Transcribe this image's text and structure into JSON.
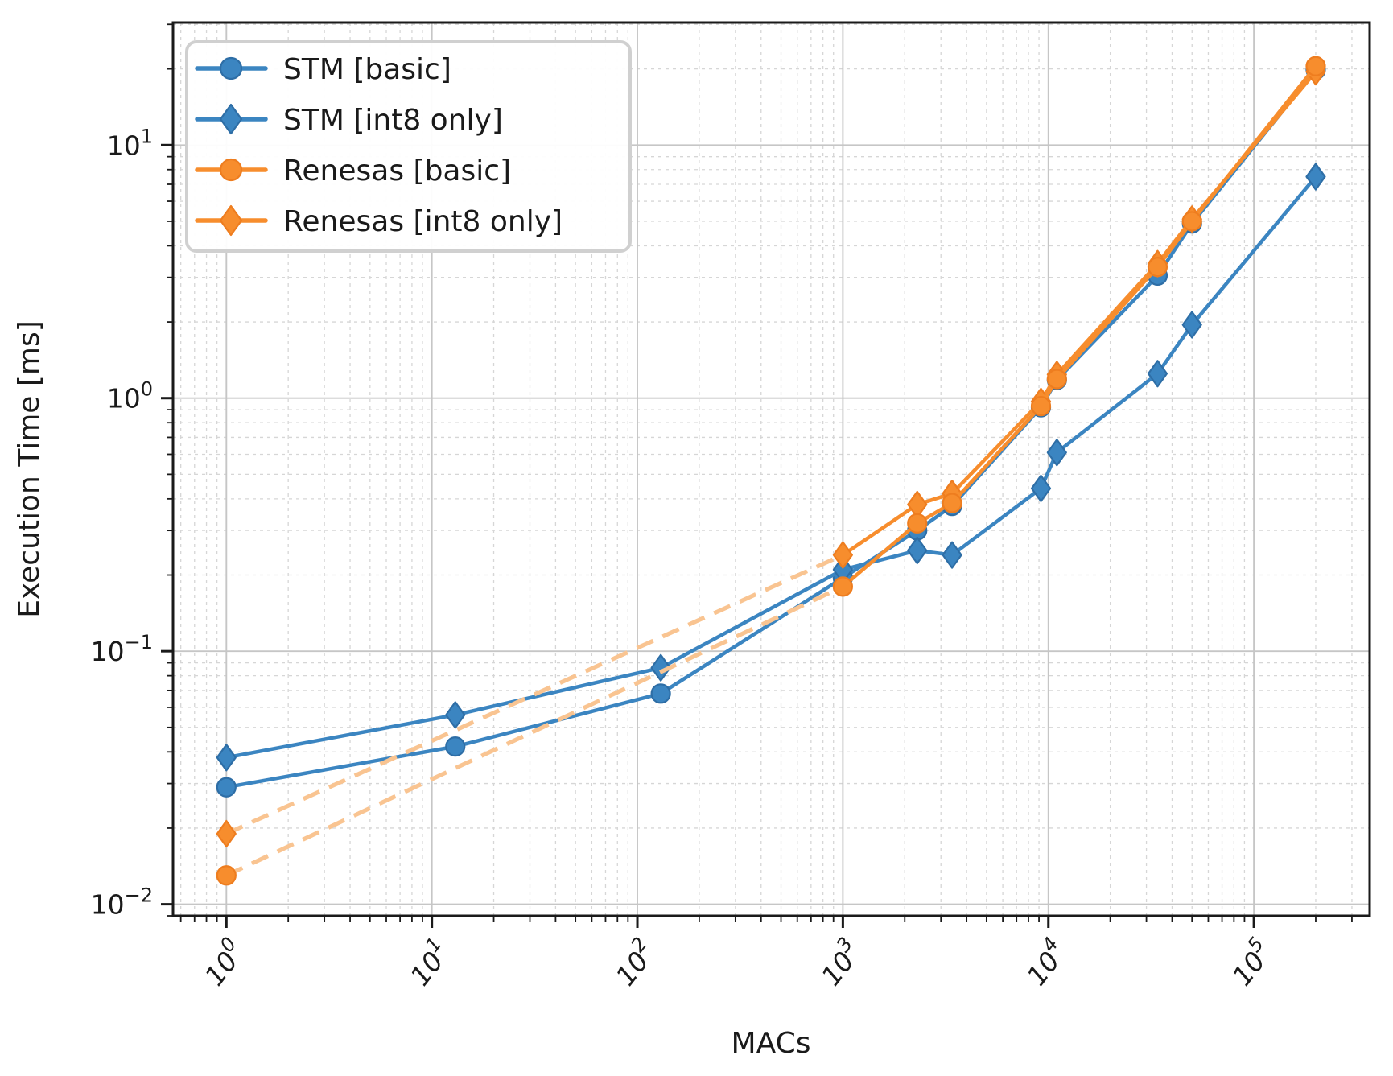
{
  "figure": {
    "background": "#ffffff",
    "spine_color": "#1a1a1a",
    "grid_major_color": "#c6c6c6",
    "grid_minor_color": "#d6d6d6",
    "text_color": "#1a1a1a"
  },
  "chart_data": {
    "type": "line",
    "xscale": "log",
    "yscale": "log",
    "title": "",
    "xlabel": "MACs",
    "ylabel": "Execution Time [ms]",
    "xlim": [
      0.55,
      366000
    ],
    "ylim": [
      0.009,
      30.5
    ],
    "grid": {
      "major": true,
      "minor": true
    },
    "legend_position": "upper left",
    "x_ticks": [
      {
        "value": 1,
        "base": "10",
        "exp": "0"
      },
      {
        "value": 10,
        "base": "10",
        "exp": "1"
      },
      {
        "value": 100,
        "base": "10",
        "exp": "2"
      },
      {
        "value": 1000,
        "base": "10",
        "exp": "3"
      },
      {
        "value": 10000,
        "base": "10",
        "exp": "4"
      },
      {
        "value": 100000,
        "base": "10",
        "exp": "5"
      }
    ],
    "y_ticks": [
      {
        "value": 10,
        "base": "10",
        "exp": "1"
      },
      {
        "value": 1,
        "base": "10",
        "exp": "0"
      },
      {
        "value": 0.1,
        "base": "10",
        "exp": "−1"
      },
      {
        "value": 0.01,
        "base": "10",
        "exp": "−2"
      }
    ],
    "series": [
      {
        "name": "STM [basic]",
        "color": "#3b85c1",
        "edge_color": "#2e6ea6",
        "marker": "circle",
        "linestyle": "solid",
        "dashed_first_segments": 0,
        "z": 1,
        "points": [
          [
            1,
            0.029
          ],
          [
            13,
            0.042
          ],
          [
            130,
            0.068
          ],
          [
            1000,
            0.195
          ],
          [
            2300,
            0.3
          ],
          [
            3400,
            0.375
          ],
          [
            9200,
            0.92
          ],
          [
            11000,
            1.18
          ],
          [
            34000,
            3.05
          ],
          [
            50000,
            4.9
          ],
          [
            200000,
            19.8
          ]
        ]
      },
      {
        "name": "STM [int8 only]",
        "color": "#3b85c1",
        "edge_color": "#2e6ea6",
        "marker": "diamond",
        "linestyle": "solid",
        "dashed_first_segments": 0,
        "z": 2,
        "points": [
          [
            1,
            0.038
          ],
          [
            13,
            0.056
          ],
          [
            130,
            0.086
          ],
          [
            1000,
            0.21
          ],
          [
            2300,
            0.25
          ],
          [
            3400,
            0.24
          ],
          [
            9200,
            0.44
          ],
          [
            11000,
            0.61
          ],
          [
            34000,
            1.25
          ],
          [
            50000,
            1.95
          ],
          [
            200000,
            7.5
          ]
        ]
      },
      {
        "name": "Renesas [basic]",
        "color": "#f78d2d",
        "edge_color": "#ee7d1f",
        "marker": "circle",
        "linestyle": "dashed_then_solid",
        "dashed_first_segments": 1,
        "dash_color": "#f9c491",
        "z": 4,
        "points": [
          [
            1,
            0.013
          ],
          [
            1000,
            0.18
          ],
          [
            2300,
            0.32
          ],
          [
            3400,
            0.385
          ],
          [
            9200,
            0.93
          ],
          [
            11000,
            1.19
          ],
          [
            34000,
            3.3
          ],
          [
            50000,
            5.0
          ],
          [
            200000,
            20.5
          ]
        ]
      },
      {
        "name": "Renesas [int8 only]",
        "color": "#f78d2d",
        "edge_color": "#ee7d1f",
        "marker": "diamond",
        "linestyle": "dashed_then_solid",
        "dashed_first_segments": 1,
        "dash_color": "#f9c491",
        "z": 3,
        "points": [
          [
            1,
            0.019
          ],
          [
            1000,
            0.24
          ],
          [
            2300,
            0.38
          ],
          [
            3400,
            0.42
          ],
          [
            9200,
            0.97
          ],
          [
            11000,
            1.24
          ],
          [
            34000,
            3.4
          ],
          [
            50000,
            5.1
          ],
          [
            200000,
            19.5
          ]
        ]
      }
    ]
  },
  "legend": {
    "items": [
      {
        "label": "STM [basic]",
        "series_index": 0
      },
      {
        "label": "STM [int8 only]",
        "series_index": 1
      },
      {
        "label": "Renesas [basic]",
        "series_index": 2
      },
      {
        "label": "Renesas [int8 only]",
        "series_index": 3
      }
    ],
    "background": "#ffffff",
    "border_color": "#d0d0d0"
  }
}
